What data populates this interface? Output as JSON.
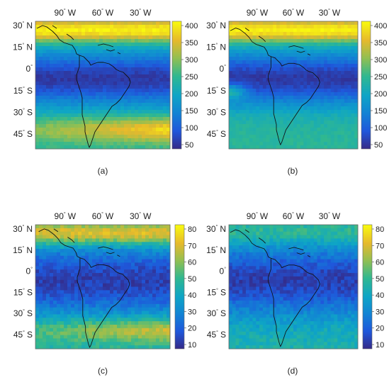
{
  "degree_symbol": "°",
  "panels": [
    {
      "caption": "(a)",
      "lat_ticks": [
        {
          "num": "30",
          "hemi": "N"
        },
        {
          "num": "15",
          "hemi": "N"
        },
        {
          "num": "0",
          "hemi": ""
        },
        {
          "num": "15",
          "hemi": "S"
        },
        {
          "num": "30",
          "hemi": "S"
        },
        {
          "num": "45",
          "hemi": "S"
        }
      ],
      "lon_ticks": [
        {
          "num": "90",
          "hemi": "W"
        },
        {
          "num": "60",
          "hemi": "W"
        },
        {
          "num": "30",
          "hemi": "W"
        }
      ],
      "colorbar": {
        "min": 50,
        "max": 400,
        "ticks": [
          "400",
          "350",
          "300",
          "250",
          "200",
          "150",
          "100",
          "50"
        ]
      },
      "field": {
        "low_band": "wide",
        "north_high": true,
        "south_high": true
      }
    },
    {
      "caption": "(b)",
      "lat_ticks": [
        {
          "num": "30",
          "hemi": "N"
        },
        {
          "num": "15",
          "hemi": "N"
        },
        {
          "num": "0",
          "hemi": ""
        },
        {
          "num": "15",
          "hemi": "S"
        },
        {
          "num": "30",
          "hemi": "S"
        },
        {
          "num": "45",
          "hemi": "S"
        }
      ],
      "lon_ticks": [
        {
          "num": "90",
          "hemi": "W"
        },
        {
          "num": "60",
          "hemi": "W"
        },
        {
          "num": "30",
          "hemi": "W"
        }
      ],
      "colorbar": {
        "min": 50,
        "max": 400,
        "ticks": [
          "400",
          "350",
          "300",
          "250",
          "200",
          "150",
          "100",
          "50"
        ]
      },
      "field": {
        "low_band": "wide",
        "north_high": true,
        "south_high": false
      }
    },
    {
      "caption": "(c)",
      "lat_ticks": [
        {
          "num": "30",
          "hemi": "N"
        },
        {
          "num": "15",
          "hemi": "N"
        },
        {
          "num": "0",
          "hemi": ""
        },
        {
          "num": "15",
          "hemi": "S"
        },
        {
          "num": "30",
          "hemi": "S"
        },
        {
          "num": "45",
          "hemi": "S"
        }
      ],
      "lon_ticks": [
        {
          "num": "90",
          "hemi": "W"
        },
        {
          "num": "60",
          "hemi": "W"
        },
        {
          "num": "30",
          "hemi": "W"
        }
      ],
      "colorbar": {
        "min": 10,
        "max": 80,
        "ticks": [
          "80",
          "70",
          "60",
          "50",
          "40",
          "30",
          "20",
          "10"
        ]
      },
      "field": {
        "low_band": "narrow",
        "north_high": true,
        "south_high": true
      }
    },
    {
      "caption": "(d)",
      "lat_ticks": [
        {
          "num": "30",
          "hemi": "N"
        },
        {
          "num": "15",
          "hemi": "N"
        },
        {
          "num": "0",
          "hemi": ""
        },
        {
          "num": "15",
          "hemi": "S"
        },
        {
          "num": "30",
          "hemi": "S"
        },
        {
          "num": "45",
          "hemi": "S"
        }
      ],
      "lon_ticks": [
        {
          "num": "90",
          "hemi": "W"
        },
        {
          "num": "60",
          "hemi": "W"
        },
        {
          "num": "30",
          "hemi": "W"
        }
      ],
      "colorbar": {
        "min": 10,
        "max": 80,
        "ticks": [
          "80",
          "70",
          "60",
          "50",
          "40",
          "30",
          "20",
          "10"
        ]
      },
      "field": {
        "low_band": "narrow",
        "north_high": false,
        "south_high": false
      }
    }
  ]
}
